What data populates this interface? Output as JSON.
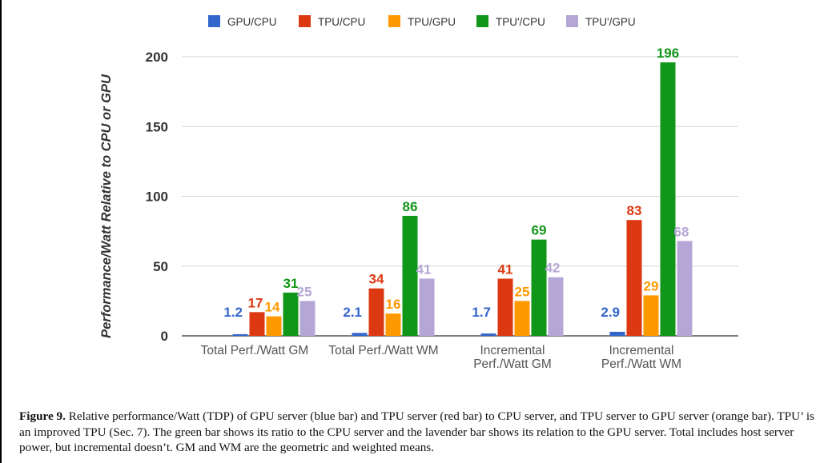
{
  "chart_data": {
    "type": "bar",
    "ylabel": "Performance/Watt Relative to CPU or GPU",
    "ylim": [
      0,
      200
    ],
    "yticks": [
      0,
      50,
      100,
      150,
      200
    ],
    "grid": true,
    "legend_position": "top",
    "categories": [
      [
        "Total Perf./Watt GM"
      ],
      [
        "Total Perf./Watt WM"
      ],
      [
        "Incremental",
        "Perf./Watt GM"
      ],
      [
        "Incremental",
        "Perf./Watt WM"
      ]
    ],
    "series": [
      {
        "name": "GPU/CPU",
        "color": "#3366cc",
        "values": [
          1.2,
          2.1,
          1.7,
          2.9
        ],
        "labels": [
          "1.2",
          "2.1",
          "1.7",
          "2.9"
        ]
      },
      {
        "name": "TPU/CPU",
        "color": "#dc3912",
        "values": [
          17,
          34,
          41,
          83
        ],
        "labels": [
          "17",
          "34",
          "41",
          "83"
        ]
      },
      {
        "name": "TPU/GPU",
        "color": "#ff9900",
        "values": [
          14,
          16,
          25,
          29
        ],
        "labels": [
          "14",
          "16",
          "25",
          "29"
        ]
      },
      {
        "name": "TPU'/CPU",
        "color": "#109618",
        "values": [
          31,
          86,
          69,
          196
        ],
        "labels": [
          "31",
          "86",
          "69",
          "196"
        ]
      },
      {
        "name": "TPU'/GPU",
        "color": "#b4a7d6",
        "values": [
          25,
          41,
          42,
          68
        ],
        "labels": [
          "25",
          "41",
          "42",
          "68"
        ]
      }
    ]
  },
  "caption": {
    "lead": "Figure 9.",
    "text": " Relative performance/Watt (TDP) of GPU server (blue bar) and TPU server (red bar) to CPU server, and TPU server to GPU server (orange bar).  TPU’ is an improved TPU (Sec. 7). The green bar shows its ratio to the CPU server and the lavender bar shows its relation to the GPU server. Total includes host server power, but incremental doesn’t. GM and WM are the geometric and weighted  means."
  }
}
